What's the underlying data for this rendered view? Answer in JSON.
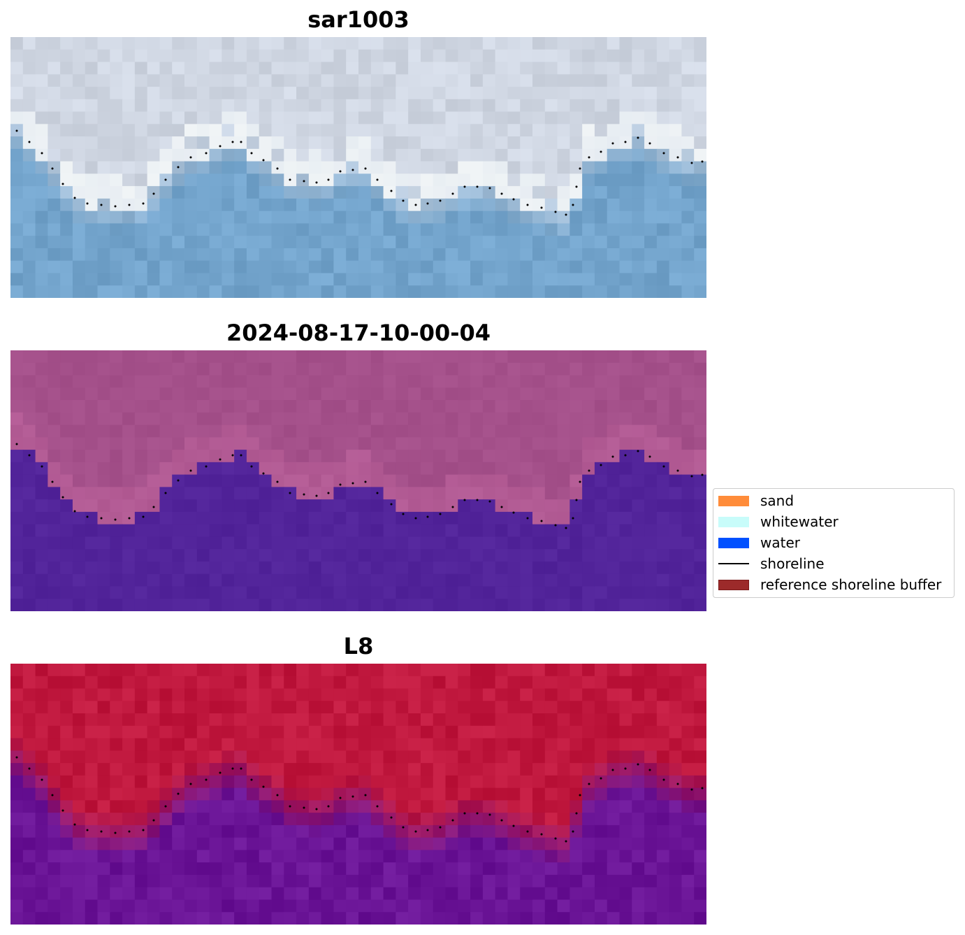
{
  "panels": [
    {
      "title": "sar1003",
      "style": "rgb"
    },
    {
      "title": "2024-08-17-10-00-04",
      "style": "class"
    },
    {
      "title": "L8",
      "style": "index"
    }
  ],
  "legend": {
    "items": [
      {
        "label": "sand",
        "kind": "patch",
        "color": "#ff8c3a",
        "edge": "#ff8c3a"
      },
      {
        "label": "whitewater",
        "kind": "patch",
        "color": "#c8fcfa",
        "edge": "#c8fcfa"
      },
      {
        "label": "water",
        "kind": "patch",
        "color": "#0050ff",
        "edge": "#0050ff"
      },
      {
        "label": "shoreline",
        "kind": "line",
        "color": "#000000"
      },
      {
        "label": "reference shoreline buffer",
        "kind": "patch",
        "color": "#9c2a2a",
        "edge": "#7a1a1a"
      }
    ]
  },
  "colors": {
    "rgb_land": "#cfd6e2",
    "rgb_water": "#73a4cc",
    "class_land": "#a4508a",
    "class_water": "#52249a",
    "index_land": "#c0183e",
    "index_water": "#6a1496",
    "shoreline_points": "#000000"
  }
}
